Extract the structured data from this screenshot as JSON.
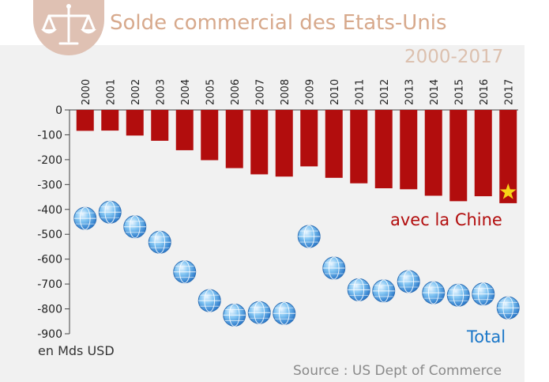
{
  "header": {
    "title": "Solde commercial des Etats-Unis",
    "period": "2000-2017",
    "logo": "scales-of-justice-icon"
  },
  "labels": {
    "china": "avec la Chine",
    "total": "Total",
    "unit": "en Mds USD",
    "source": "Source : US Dept of Commerce"
  },
  "colors": {
    "china_bar": "#b20d0d",
    "total_marker": "#4fa3e8",
    "title": "#d7a98c",
    "star": "#f7d417"
  },
  "chart_data": {
    "type": "bar",
    "categories": [
      "2000",
      "2001",
      "2002",
      "2003",
      "2004",
      "2005",
      "2006",
      "2007",
      "2008",
      "2009",
      "2010",
      "2011",
      "2012",
      "2013",
      "2014",
      "2015",
      "2016",
      "2017"
    ],
    "series": [
      {
        "name": "avec la Chine",
        "type": "bar",
        "values": [
          -84,
          -83,
          -103,
          -124,
          -162,
          -202,
          -234,
          -259,
          -268,
          -227,
          -273,
          -295,
          -315,
          -319,
          -345,
          -367,
          -347,
          -375
        ]
      },
      {
        "name": "Total",
        "type": "scatter",
        "marker": "globe-icon",
        "values": [
          -436,
          -411,
          -470,
          -532,
          -651,
          -767,
          -825,
          -815,
          -818,
          -509,
          -636,
          -723,
          -728,
          -690,
          -735,
          -745,
          -740,
          -796
        ]
      }
    ],
    "highlight": {
      "category": "2017",
      "series": "avec la Chine",
      "marker": "star-icon"
    },
    "ylim": [
      -900,
      0
    ],
    "yticks": [
      0,
      -100,
      -200,
      -300,
      -400,
      -500,
      -600,
      -700,
      -800,
      -900
    ],
    "xaxis_position": "top",
    "grid": false
  }
}
